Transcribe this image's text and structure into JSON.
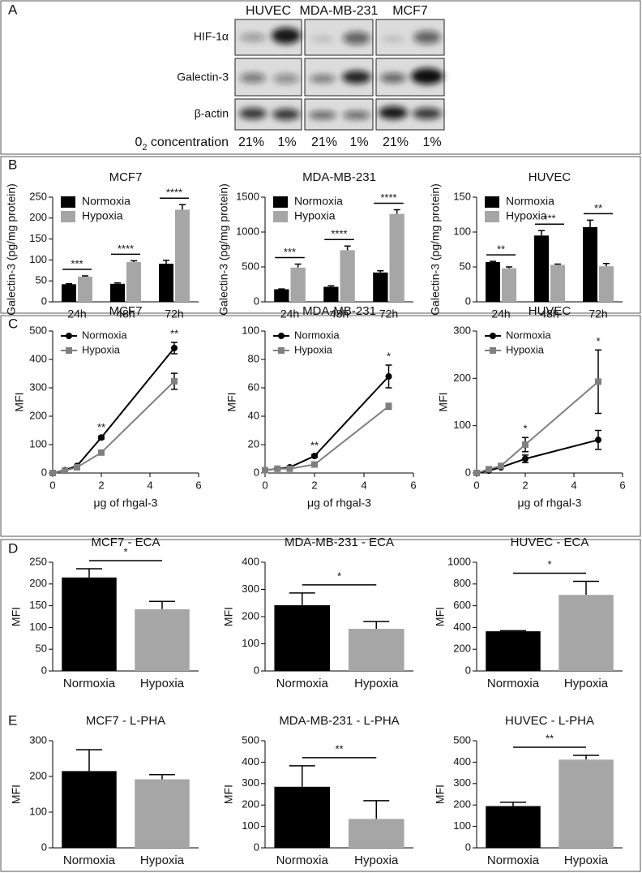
{
  "panel_labels": [
    "A",
    "B",
    "C",
    "D",
    "E"
  ],
  "blot": {
    "cell_lines": [
      "HUVEC",
      "MDA-MB-231",
      "MCF7"
    ],
    "proteins": [
      "HIF-1α",
      "Galectin-3",
      "β-actin"
    ],
    "o2_label": {
      "main": "0",
      "sub": "2",
      "rest": " concentration"
    },
    "concentrations": [
      "21%",
      "1%",
      "21%",
      "1%",
      "21%",
      "1%"
    ]
  },
  "chart_data": [
    {
      "type": "bar",
      "title": "MCF7",
      "y_label": "Galectin-3 (pg/mg protein)",
      "categories": [
        "24h",
        "48h",
        "72h"
      ],
      "ylim": [
        0,
        250
      ],
      "yticks": [
        0,
        50,
        100,
        150,
        200,
        250
      ],
      "legend": "upper left",
      "series": [
        {
          "name": "Normoxia",
          "color": "#000000",
          "values": [
            42,
            43,
            91
          ],
          "errors": [
            1,
            2,
            8
          ]
        },
        {
          "name": "Hypoxia",
          "color": "#a6a6a6",
          "values": [
            60,
            95,
            220
          ],
          "errors": [
            2,
            3,
            12
          ]
        }
      ],
      "significance": [
        "***",
        "****",
        "****"
      ]
    },
    {
      "type": "bar",
      "title": "MDA-MB-231",
      "y_label": "Galectin-3 (pg/mg protein)",
      "categories": [
        "24h",
        "48h",
        "72h"
      ],
      "ylim": [
        0,
        1500
      ],
      "yticks": [
        0,
        500,
        1000,
        1500
      ],
      "legend": "upper left",
      "series": [
        {
          "name": "Normoxia",
          "color": "#000000",
          "values": [
            180,
            215,
            420
          ],
          "errors": [
            5,
            15,
            25
          ]
        },
        {
          "name": "Hypoxia",
          "color": "#a6a6a6",
          "values": [
            490,
            740,
            1260
          ],
          "errors": [
            50,
            60,
            60
          ]
        }
      ],
      "significance": [
        "***",
        "****",
        "****"
      ]
    },
    {
      "type": "bar",
      "title": "HUVEC",
      "y_label": "Galectin-3 (pg/mg protein)",
      "categories": [
        "24h",
        "48h",
        "72h"
      ],
      "ylim": [
        0,
        150
      ],
      "yticks": [
        0,
        50,
        100,
        150
      ],
      "legend": "upper left",
      "series": [
        {
          "name": "Normoxia",
          "color": "#000000",
          "values": [
            57,
            95,
            107
          ],
          "errors": [
            1,
            7,
            10
          ]
        },
        {
          "name": "Hypoxia",
          "color": "#a6a6a6",
          "values": [
            48,
            53,
            51
          ],
          "errors": [
            2,
            1,
            4
          ]
        }
      ],
      "significance": [
        "**",
        "***",
        "**"
      ]
    },
    {
      "type": "line",
      "title": "MCF7",
      "x_label": "μg of rhgal-3",
      "y_label": "MFI",
      "x": [
        0,
        0.5,
        1,
        2,
        5
      ],
      "xlim": [
        0,
        6
      ],
      "xticks": [
        0,
        2,
        4,
        6
      ],
      "ylim": [
        0,
        500
      ],
      "yticks": [
        0,
        100,
        200,
        300,
        400,
        500
      ],
      "legend": "upper left",
      "series": [
        {
          "name": "Normoxia",
          "color": "#000000",
          "marker": "circle",
          "values": [
            0,
            10,
            25,
            125,
            440
          ],
          "errors": [
            2,
            2,
            3,
            5,
            20
          ]
        },
        {
          "name": "Hypoxia",
          "color": "#808080",
          "marker": "square",
          "values": [
            0,
            8,
            20,
            72,
            323
          ],
          "errors": [
            2,
            2,
            3,
            5,
            28
          ]
        }
      ],
      "significance": [
        null,
        null,
        null,
        "**",
        "**"
      ]
    },
    {
      "type": "line",
      "title": "MDA-MB-231",
      "x_label": "μg of rhgal-3",
      "y_label": "MFI",
      "x": [
        0,
        0.5,
        1,
        2,
        5
      ],
      "xlim": [
        0,
        6
      ],
      "xticks": [
        0,
        2,
        4,
        6
      ],
      "ylim": [
        0,
        100
      ],
      "yticks": [
        0,
        20,
        40,
        60,
        80,
        100
      ],
      "legend": "upper left",
      "series": [
        {
          "name": "Normoxia",
          "color": "#000000",
          "marker": "circle",
          "values": [
            2,
            3,
            4,
            12,
            68
          ],
          "errors": [
            0.5,
            0.5,
            1,
            1,
            8
          ]
        },
        {
          "name": "Hypoxia",
          "color": "#808080",
          "marker": "square",
          "values": [
            2,
            3,
            3,
            6,
            47
          ],
          "errors": [
            0.5,
            0.5,
            0.5,
            1,
            2
          ]
        }
      ],
      "significance": [
        null,
        null,
        null,
        "**",
        "*"
      ]
    },
    {
      "type": "line",
      "title": "HUVEC",
      "x_label": "μg of rhgal-3",
      "y_label": "MFI",
      "x": [
        0,
        0.5,
        1,
        2,
        5
      ],
      "xlim": [
        0,
        6
      ],
      "xticks": [
        0,
        2,
        4,
        6
      ],
      "ylim": [
        0,
        300
      ],
      "yticks": [
        0,
        100,
        200,
        300
      ],
      "legend": "upper left",
      "series": [
        {
          "name": "Normoxia",
          "color": "#000000",
          "marker": "circle",
          "values": [
            0,
            5,
            12,
            30,
            70
          ],
          "errors": [
            1,
            1,
            2,
            8,
            20
          ]
        },
        {
          "name": "Hypoxia",
          "color": "#808080",
          "marker": "square",
          "values": [
            0,
            8,
            15,
            60,
            193
          ],
          "errors": [
            1,
            1,
            2,
            15,
            67
          ]
        }
      ],
      "significance": [
        null,
        null,
        null,
        "*",
        "*"
      ]
    },
    {
      "type": "bar",
      "title": "MCF7 - ECA",
      "y_label": "MFI",
      "categories": [
        "Normoxia",
        "Hypoxia"
      ],
      "values": [
        215,
        142
      ],
      "errors": [
        20,
        18
      ],
      "colors": [
        "#000000",
        "#a6a6a6"
      ],
      "ylim": [
        0,
        250
      ],
      "yticks": [
        0,
        50,
        100,
        150,
        200,
        250
      ],
      "significance": "*"
    },
    {
      "type": "bar",
      "title": "MDA-MB-231 - ECA",
      "y_label": "MFI",
      "categories": [
        "Normoxia",
        "Hypoxia"
      ],
      "values": [
        242,
        155
      ],
      "errors": [
        45,
        27
      ],
      "colors": [
        "#000000",
        "#a6a6a6"
      ],
      "ylim": [
        0,
        400
      ],
      "yticks": [
        0,
        100,
        200,
        300,
        400
      ],
      "significance": "*"
    },
    {
      "type": "bar",
      "title": "HUVEC - ECA",
      "y_label": "MFI",
      "categories": [
        "Normoxia",
        "Hypoxia"
      ],
      "values": [
        365,
        700
      ],
      "errors": [
        5,
        125
      ],
      "colors": [
        "#000000",
        "#a6a6a6"
      ],
      "ylim": [
        0,
        1000
      ],
      "yticks": [
        0,
        200,
        400,
        600,
        800,
        1000
      ],
      "significance": "*"
    },
    {
      "type": "bar",
      "title": "MCF7 - L-PHA",
      "y_label": "MFI",
      "categories": [
        "Normoxia",
        "Hypoxia"
      ],
      "values": [
        215,
        192
      ],
      "errors": [
        60,
        13
      ],
      "colors": [
        "#000000",
        "#a6a6a6"
      ],
      "ylim": [
        0,
        300
      ],
      "yticks": [
        0,
        100,
        200,
        300
      ]
    },
    {
      "type": "bar",
      "title": "MDA-MB-231 - L-PHA",
      "y_label": "MFI",
      "categories": [
        "Normoxia",
        "Hypoxia"
      ],
      "values": [
        285,
        135
      ],
      "errors": [
        98,
        85
      ],
      "colors": [
        "#000000",
        "#a6a6a6"
      ],
      "ylim": [
        0,
        500
      ],
      "yticks": [
        0,
        100,
        200,
        300,
        400,
        500
      ],
      "significance": "**"
    },
    {
      "type": "bar",
      "title": "HUVEC - L-PHA",
      "y_label": "MFI",
      "categories": [
        "Normoxia",
        "Hypoxia"
      ],
      "values": [
        195,
        412
      ],
      "errors": [
        18,
        20
      ],
      "colors": [
        "#000000",
        "#a6a6a6"
      ],
      "ylim": [
        0,
        500
      ],
      "yticks": [
        0,
        100,
        200,
        300,
        400,
        500
      ],
      "significance": "**"
    }
  ]
}
